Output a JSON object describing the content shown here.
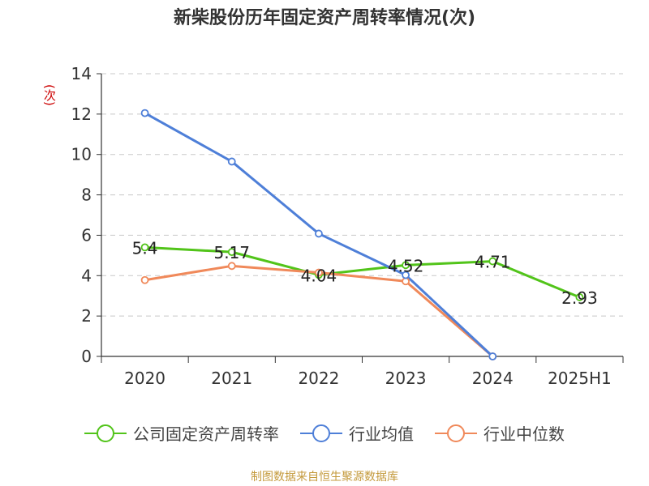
{
  "title": "新柴股份历年固定资产周转率情况(次)",
  "source": "制图数据来自恒生聚源数据库",
  "chart_data": {
    "type": "line",
    "unit_label": "(次)",
    "categories": [
      "2020",
      "2021",
      "2022",
      "2023",
      "2024",
      "2025H1"
    ],
    "ylim": [
      0,
      14
    ],
    "yticks": [
      0,
      2,
      4,
      6,
      8,
      10,
      12,
      14
    ],
    "grid": true,
    "legend_position": "bottom",
    "series": [
      {
        "name": "公司固定资产周转率",
        "color": "#52c41a",
        "values": [
          5.4,
          5.17,
          4.04,
          4.52,
          4.71,
          2.93
        ],
        "labels": [
          "5.4",
          "5.17",
          "4.04",
          "4.52",
          "4.71",
          "2.93"
        ]
      },
      {
        "name": "行业均值",
        "color": "#4e7fd8",
        "values": [
          12.05,
          9.65,
          6.08,
          4.03,
          0.0,
          null
        ]
      },
      {
        "name": "行业中位数",
        "color": "#f0895a",
        "values": [
          3.78,
          4.48,
          4.15,
          3.72,
          0.0,
          null
        ]
      }
    ]
  }
}
